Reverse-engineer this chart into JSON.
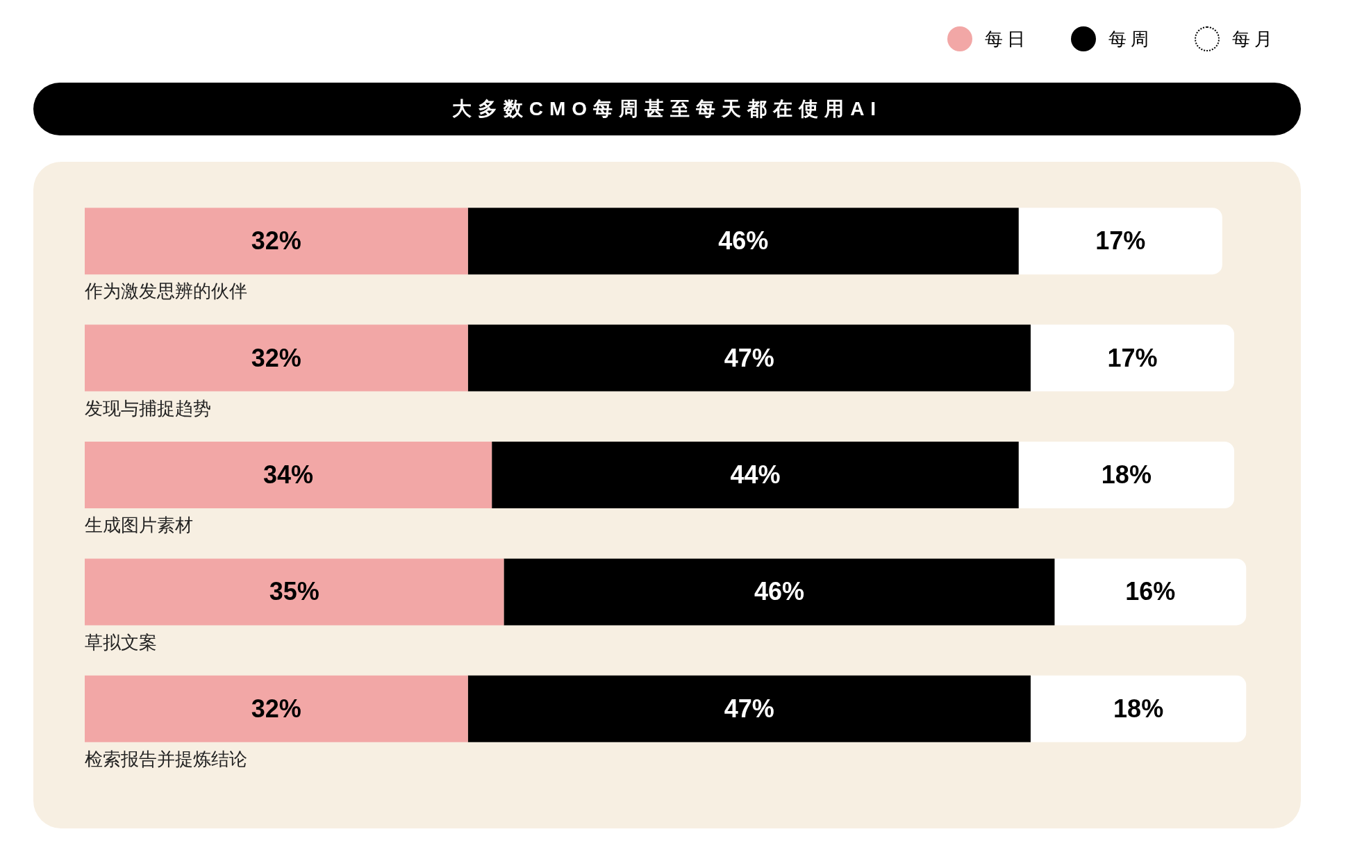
{
  "chart_data": {
    "type": "bar",
    "orientation": "horizontal",
    "stacked": true,
    "title": "大多数CMO每周甚至每天都在使用AI",
    "categories": [
      "作为激发思辨的伙伴",
      "发现与捕捉趋势",
      "生成图片素材",
      "草拟文案",
      "检索报告并提炼结论"
    ],
    "legend": "top right",
    "series": [
      {
        "name": "每日",
        "color": "#f2a7a6",
        "values": [
          32,
          32,
          34,
          35,
          32
        ],
        "value_labels": [
          "32%",
          "32%",
          "34%",
          "35%",
          "32%"
        ]
      },
      {
        "name": "每周",
        "color": "#000000",
        "values": [
          46,
          47,
          44,
          46,
          47
        ],
        "value_labels": [
          "46%",
          "47%",
          "44%",
          "46%",
          "47%"
        ]
      },
      {
        "name": "每月",
        "color": "#ffffff",
        "values": [
          17,
          17,
          18,
          16,
          18
        ],
        "value_labels": [
          "17%",
          "17%",
          "18%",
          "16%",
          "18%"
        ]
      }
    ]
  }
}
